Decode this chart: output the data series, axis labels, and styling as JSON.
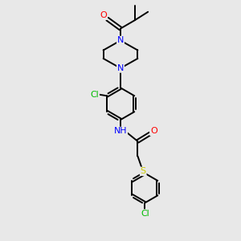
{
  "background_color": "#e8e8e8",
  "bond_color": "#000000",
  "atom_colors": {
    "O": "#ff0000",
    "N": "#0000ff",
    "Cl": "#00bb00",
    "S": "#cccc00",
    "C": "#000000",
    "H": "#000000"
  },
  "figsize": [
    3.0,
    3.0
  ],
  "dpi": 100,
  "lw": 1.4,
  "fontsize": 7.5
}
